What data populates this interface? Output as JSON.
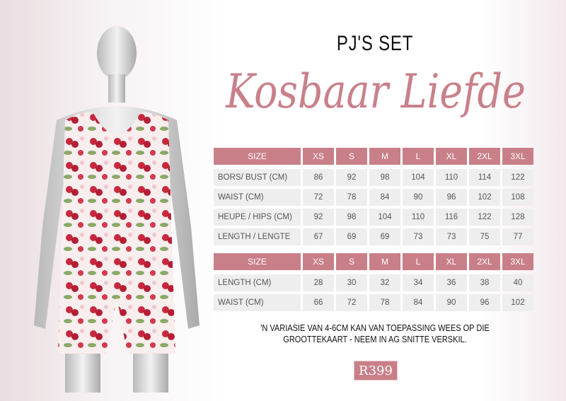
{
  "subtitle": "PJ'S SET",
  "title": "Kosbaar Liefde",
  "table_top": {
    "headers": [
      "SIZE",
      "XS",
      "S",
      "M",
      "L",
      "XL",
      "2XL",
      "3XL"
    ],
    "rows": [
      [
        "BORS/ BUST (CM)",
        "86",
        "92",
        "98",
        "104",
        "110",
        "114",
        "122"
      ],
      [
        "WAIST (CM)",
        "72",
        "78",
        "84",
        "90",
        "96",
        "102",
        "108"
      ],
      [
        "HEUPE / HIPS (CM)",
        "92",
        "98",
        "104",
        "110",
        "116",
        "122",
        "128"
      ],
      [
        "LENGTH / LENGTE",
        "67",
        "69",
        "69",
        "73",
        "73",
        "75",
        "77"
      ]
    ]
  },
  "table_bottom": {
    "headers": [
      "SIZE",
      "XS",
      "S",
      "M",
      "L",
      "XL",
      "2XL",
      "3XL"
    ],
    "rows": [
      [
        "LENGTH (CM)",
        "28",
        "30",
        "32",
        "34",
        "36",
        "38",
        "40"
      ],
      [
        "WAIST (CM)",
        "66",
        "72",
        "78",
        "84",
        "90",
        "96",
        "102"
      ]
    ]
  },
  "note": "'N VARIASIE VAN 4-6CM KAN VAN TOEPASSING WEES OP DIE GROOTTEKAART - NEEM IN AG SNITTE VERSKIL.",
  "price": "R399",
  "colors": {
    "accent": "#c97f88",
    "cell": "#efeeee",
    "print_red": "#c8283e",
    "leaf": "#8aa867"
  }
}
